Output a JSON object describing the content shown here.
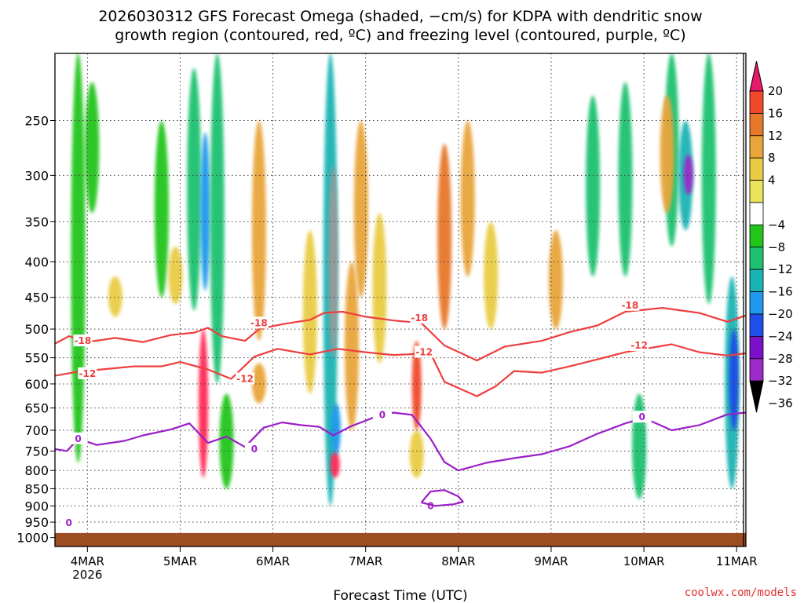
{
  "title": {
    "line1": "2026030312 GFS Forecast Omega (shaded, −cm/s) for KDPA with dendritic snow",
    "line2": "growth region (contoured, red, ºC) and freezing level (contoured, purple, ºC)"
  },
  "credit": "coolwx.com/models",
  "credit_color": "#e03030",
  "chart_data": {
    "type": "heatmap",
    "xlabel": "Forecast Time (UTC)",
    "ylabel": "",
    "x_range_days": [
      3.65,
      11.1
    ],
    "y_axis": {
      "scale": "log-pressure",
      "range_hPa": [
        1030,
        200
      ],
      "inverted": true
    },
    "x_ticks": [
      {
        "value": 4,
        "label": "4MAR",
        "sublabel": "2026"
      },
      {
        "value": 5,
        "label": "5MAR"
      },
      {
        "value": 6,
        "label": "6MAR"
      },
      {
        "value": 7,
        "label": "7MAR"
      },
      {
        "value": 8,
        "label": "8MAR"
      },
      {
        "value": 9,
        "label": "9MAR"
      },
      {
        "value": 10,
        "label": "10MAR"
      },
      {
        "value": 11,
        "label": "11MAR"
      }
    ],
    "y_ticks": [
      {
        "value": 250,
        "label": "250"
      },
      {
        "value": 300,
        "label": "300"
      },
      {
        "value": 350,
        "label": "350"
      },
      {
        "value": 400,
        "label": "400"
      },
      {
        "value": 450,
        "label": "450"
      },
      {
        "value": 500,
        "label": "500"
      },
      {
        "value": 550,
        "label": "550"
      },
      {
        "value": 600,
        "label": "600"
      },
      {
        "value": 650,
        "label": "650"
      },
      {
        "value": 700,
        "label": "700"
      },
      {
        "value": 750,
        "label": "750"
      },
      {
        "value": 800,
        "label": "800"
      },
      {
        "value": 850,
        "label": "850"
      },
      {
        "value": 900,
        "label": "900"
      },
      {
        "value": 950,
        "label": "950"
      },
      {
        "value": 1000,
        "label": "1000"
      }
    ],
    "ground_pressure_hPa": 985,
    "colorbar": {
      "units": "-cm/s",
      "labels": [
        "20",
        "16",
        "12",
        "8",
        "4",
        "−4",
        "−8",
        "−12",
        "−16",
        "−20",
        "−24",
        "−28",
        "−32",
        "−36"
      ],
      "colors": [
        "#ff2a57",
        "#f04a2a",
        "#e6782a",
        "#e8a53a",
        "#e9cc44",
        "#eae35c",
        "#ffffff",
        "#22c51a",
        "#1fc170",
        "#1ab4b4",
        "#1f98ee",
        "#1f4ee8",
        "#7a10c8",
        "#9c2ac8",
        "#9a9a9a"
      ]
    },
    "omega_features": [
      {
        "day": 3.9,
        "p_top": 200,
        "p_bot": 780,
        "value": -7
      },
      {
        "day": 4.05,
        "p_top": 220,
        "p_bot": 340,
        "value": -7
      },
      {
        "day": 4.3,
        "p_top": 420,
        "p_bot": 480,
        "value": 5
      },
      {
        "day": 4.8,
        "p_top": 250,
        "p_bot": 450,
        "value": -6
      },
      {
        "day": 4.95,
        "p_top": 380,
        "p_bot": 460,
        "value": 5
      },
      {
        "day": 5.15,
        "p_top": 210,
        "p_bot": 470,
        "value": -8
      },
      {
        "day": 5.25,
        "p_top": 500,
        "p_bot": 820,
        "value": 22
      },
      {
        "day": 5.27,
        "p_top": 260,
        "p_bot": 440,
        "value": -18
      },
      {
        "day": 5.4,
        "p_top": 200,
        "p_bot": 600,
        "value": -10
      },
      {
        "day": 5.5,
        "p_top": 620,
        "p_bot": 850,
        "value": -6
      },
      {
        "day": 5.85,
        "p_top": 250,
        "p_bot": 520,
        "value": 10
      },
      {
        "day": 5.85,
        "p_top": 560,
        "p_bot": 640,
        "value": 9
      },
      {
        "day": 6.4,
        "p_top": 360,
        "p_bot": 620,
        "value": 6
      },
      {
        "day": 6.62,
        "p_top": 200,
        "p_bot": 900,
        "value": -14
      },
      {
        "day": 6.65,
        "p_top": 290,
        "p_bot": 550,
        "value": -32
      },
      {
        "day": 6.67,
        "p_top": 750,
        "p_bot": 820,
        "value": 20
      },
      {
        "day": 6.68,
        "p_top": 640,
        "p_bot": 760,
        "value": -18
      },
      {
        "day": 6.85,
        "p_top": 400,
        "p_bot": 700,
        "value": 8
      },
      {
        "day": 6.95,
        "p_top": 250,
        "p_bot": 450,
        "value": 9
      },
      {
        "day": 7.15,
        "p_top": 340,
        "p_bot": 560,
        "value": 6
      },
      {
        "day": 7.55,
        "p_top": 520,
        "p_bot": 700,
        "value": 18
      },
      {
        "day": 7.55,
        "p_top": 700,
        "p_bot": 820,
        "value": 6
      },
      {
        "day": 7.85,
        "p_top": 270,
        "p_bot": 500,
        "value": 14
      },
      {
        "day": 8.1,
        "p_top": 250,
        "p_bot": 420,
        "value": 10
      },
      {
        "day": 8.35,
        "p_top": 350,
        "p_bot": 500,
        "value": 6
      },
      {
        "day": 9.05,
        "p_top": 360,
        "p_bot": 500,
        "value": 10
      },
      {
        "day": 9.45,
        "p_top": 230,
        "p_bot": 420,
        "value": -8
      },
      {
        "day": 9.8,
        "p_top": 220,
        "p_bot": 420,
        "value": -9
      },
      {
        "day": 9.95,
        "p_top": 620,
        "p_bot": 880,
        "value": -8
      },
      {
        "day": 10.3,
        "p_top": 200,
        "p_bot": 380,
        "value": -9
      },
      {
        "day": 10.25,
        "p_top": 230,
        "p_bot": 340,
        "value": 9
      },
      {
        "day": 10.45,
        "p_top": 250,
        "p_bot": 360,
        "value": -14
      },
      {
        "day": 10.48,
        "p_top": 280,
        "p_bot": 320,
        "value": -29
      },
      {
        "day": 10.7,
        "p_top": 200,
        "p_bot": 460,
        "value": -10
      },
      {
        "day": 10.95,
        "p_top": 420,
        "p_bot": 850,
        "value": -12
      },
      {
        "day": 10.97,
        "p_top": 500,
        "p_bot": 700,
        "value": -22
      }
    ],
    "contours": [
      {
        "name": "-18°C isotherm",
        "color": "#ee3e3e",
        "labels": [
          {
            "text": "-18",
            "day": 3.95,
            "p": 520
          },
          {
            "text": "-18",
            "day": 5.85,
            "p": 490
          },
          {
            "text": "-18",
            "day": 7.58,
            "p": 482
          },
          {
            "text": "-18",
            "day": 9.85,
            "p": 462
          }
        ],
        "points": [
          [
            3.65,
            525
          ],
          [
            3.8,
            512
          ],
          [
            4.0,
            522
          ],
          [
            4.3,
            515
          ],
          [
            4.6,
            522
          ],
          [
            4.9,
            510
          ],
          [
            5.15,
            506
          ],
          [
            5.3,
            498
          ],
          [
            5.45,
            512
          ],
          [
            5.7,
            520
          ],
          [
            5.85,
            500
          ],
          [
            6.1,
            492
          ],
          [
            6.4,
            485
          ],
          [
            6.55,
            474
          ],
          [
            6.75,
            472
          ],
          [
            7.0,
            480
          ],
          [
            7.3,
            486
          ],
          [
            7.6,
            490
          ],
          [
            7.85,
            528
          ],
          [
            8.2,
            555
          ],
          [
            8.5,
            530
          ],
          [
            8.9,
            520
          ],
          [
            9.2,
            505
          ],
          [
            9.5,
            494
          ],
          [
            9.8,
            472
          ],
          [
            10.2,
            466
          ],
          [
            10.6,
            474
          ],
          [
            10.9,
            488
          ],
          [
            11.1,
            478
          ]
        ]
      },
      {
        "name": "-12°C isotherm",
        "color": "#ee3e3e",
        "labels": [
          {
            "text": "-12",
            "day": 4.0,
            "p": 580
          },
          {
            "text": "-12",
            "day": 5.7,
            "p": 590
          },
          {
            "text": "-12",
            "day": 7.63,
            "p": 540
          },
          {
            "text": "-12",
            "day": 9.95,
            "p": 528
          }
        ],
        "points": [
          [
            3.65,
            584
          ],
          [
            3.9,
            576
          ],
          [
            4.2,
            571
          ],
          [
            4.5,
            566
          ],
          [
            4.8,
            566
          ],
          [
            5.0,
            558
          ],
          [
            5.3,
            572
          ],
          [
            5.55,
            590
          ],
          [
            5.8,
            548
          ],
          [
            6.05,
            534
          ],
          [
            6.4,
            544
          ],
          [
            6.7,
            534
          ],
          [
            7.0,
            540
          ],
          [
            7.3,
            545
          ],
          [
            7.7,
            542
          ],
          [
            7.85,
            596
          ],
          [
            8.2,
            625
          ],
          [
            8.4,
            605
          ],
          [
            8.6,
            575
          ],
          [
            8.9,
            578
          ],
          [
            9.2,
            566
          ],
          [
            9.5,
            553
          ],
          [
            9.8,
            540
          ],
          [
            10.3,
            526
          ],
          [
            10.6,
            540
          ],
          [
            10.9,
            546
          ],
          [
            11.1,
            542
          ]
        ]
      },
      {
        "name": "0°C freezing level",
        "color": "#9a1ec8",
        "labels": [
          {
            "text": "0",
            "day": 3.9,
            "p": 720
          },
          {
            "text": "0",
            "day": 5.8,
            "p": 745
          },
          {
            "text": "0",
            "day": 7.18,
            "p": 665
          },
          {
            "text": "0",
            "day": 9.98,
            "p": 670
          },
          {
            "text": "0",
            "day": 7.7,
            "p": 900
          },
          {
            "text": "0",
            "day": 3.8,
            "p": 952
          }
        ],
        "points": [
          [
            3.65,
            745
          ],
          [
            3.78,
            750
          ],
          [
            3.9,
            720
          ],
          [
            4.1,
            735
          ],
          [
            4.4,
            725
          ],
          [
            4.6,
            712
          ],
          [
            4.9,
            698
          ],
          [
            5.1,
            684
          ],
          [
            5.3,
            730
          ],
          [
            5.5,
            715
          ],
          [
            5.7,
            740
          ],
          [
            5.9,
            694
          ],
          [
            6.1,
            682
          ],
          [
            6.3,
            688
          ],
          [
            6.5,
            692
          ],
          [
            6.65,
            712
          ],
          [
            6.85,
            690
          ],
          [
            7.1,
            670
          ],
          [
            7.3,
            660
          ],
          [
            7.5,
            665
          ],
          [
            7.7,
            720
          ],
          [
            7.85,
            778
          ],
          [
            8.0,
            800
          ],
          [
            8.3,
            780
          ],
          [
            8.6,
            768
          ],
          [
            8.9,
            758
          ],
          [
            9.2,
            738
          ],
          [
            9.5,
            708
          ],
          [
            9.8,
            684
          ],
          [
            10.0,
            672
          ],
          [
            10.3,
            700
          ],
          [
            10.6,
            688
          ],
          [
            10.9,
            664
          ],
          [
            11.1,
            660
          ]
        ]
      },
      {
        "name": "0°C closed contour",
        "color": "#9a1ec8",
        "points": [
          [
            7.6,
            890
          ],
          [
            7.7,
            858
          ],
          [
            7.85,
            854
          ],
          [
            8.0,
            872
          ],
          [
            8.05,
            888
          ],
          [
            7.95,
            895
          ],
          [
            7.75,
            900
          ],
          [
            7.6,
            890
          ]
        ]
      }
    ]
  }
}
